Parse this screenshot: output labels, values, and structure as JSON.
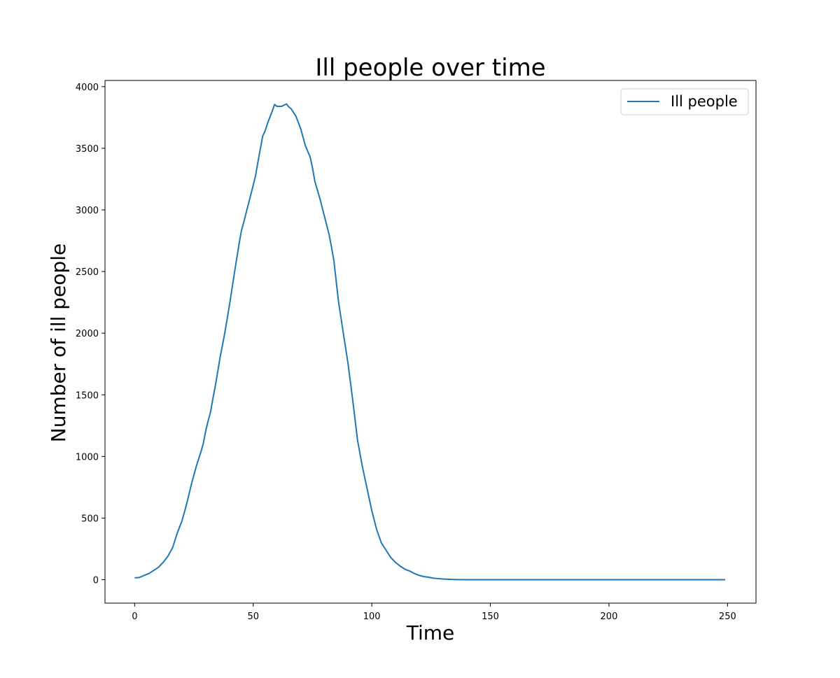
{
  "chart_data": {
    "type": "line",
    "title": "Ill people over time",
    "xlabel": "Time",
    "ylabel": "Number of ill people",
    "xlim": [
      -12.5,
      262
    ],
    "ylim": [
      -190,
      4050
    ],
    "xticks": [
      0,
      50,
      100,
      150,
      200,
      250
    ],
    "yticks": [
      0,
      500,
      1000,
      1500,
      2000,
      2500,
      3000,
      3500,
      4000
    ],
    "grid": false,
    "legend": "top-right",
    "colors": {
      "line": "#1f77b4"
    },
    "series": [
      {
        "name": "Ill people",
        "x": [
          0,
          2,
          4,
          6,
          8,
          10,
          12,
          14,
          16,
          18,
          20,
          22,
          24,
          26,
          28,
          29,
          30,
          31,
          32,
          33,
          34,
          36,
          38,
          40,
          42,
          44,
          45,
          46,
          48,
          50,
          51,
          52,
          54,
          55,
          56,
          58,
          59,
          60,
          62,
          64,
          65,
          66,
          68,
          70,
          72,
          74,
          75,
          76,
          78,
          80,
          82,
          83,
          84,
          86,
          88,
          90,
          92,
          94,
          96,
          98,
          100,
          102,
          104,
          106,
          108,
          110,
          112,
          114,
          116,
          118,
          120,
          122,
          124,
          126,
          128,
          130,
          132,
          134,
          136,
          140,
          145,
          150,
          249
        ],
        "values": [
          15,
          18,
          35,
          50,
          75,
          100,
          140,
          190,
          260,
          380,
          480,
          620,
          780,
          920,
          1040,
          1110,
          1210,
          1290,
          1360,
          1470,
          1570,
          1800,
          2000,
          2230,
          2480,
          2720,
          2830,
          2900,
          3050,
          3200,
          3280,
          3390,
          3600,
          3640,
          3700,
          3800,
          3855,
          3840,
          3840,
          3860,
          3835,
          3820,
          3760,
          3660,
          3520,
          3430,
          3340,
          3230,
          3100,
          2950,
          2800,
          2700,
          2590,
          2250,
          2000,
          1750,
          1450,
          1130,
          920,
          740,
          560,
          410,
          300,
          240,
          180,
          140,
          110,
          85,
          70,
          50,
          35,
          25,
          20,
          12,
          9,
          6,
          4,
          2,
          1,
          0,
          0,
          0,
          0
        ]
      }
    ]
  }
}
